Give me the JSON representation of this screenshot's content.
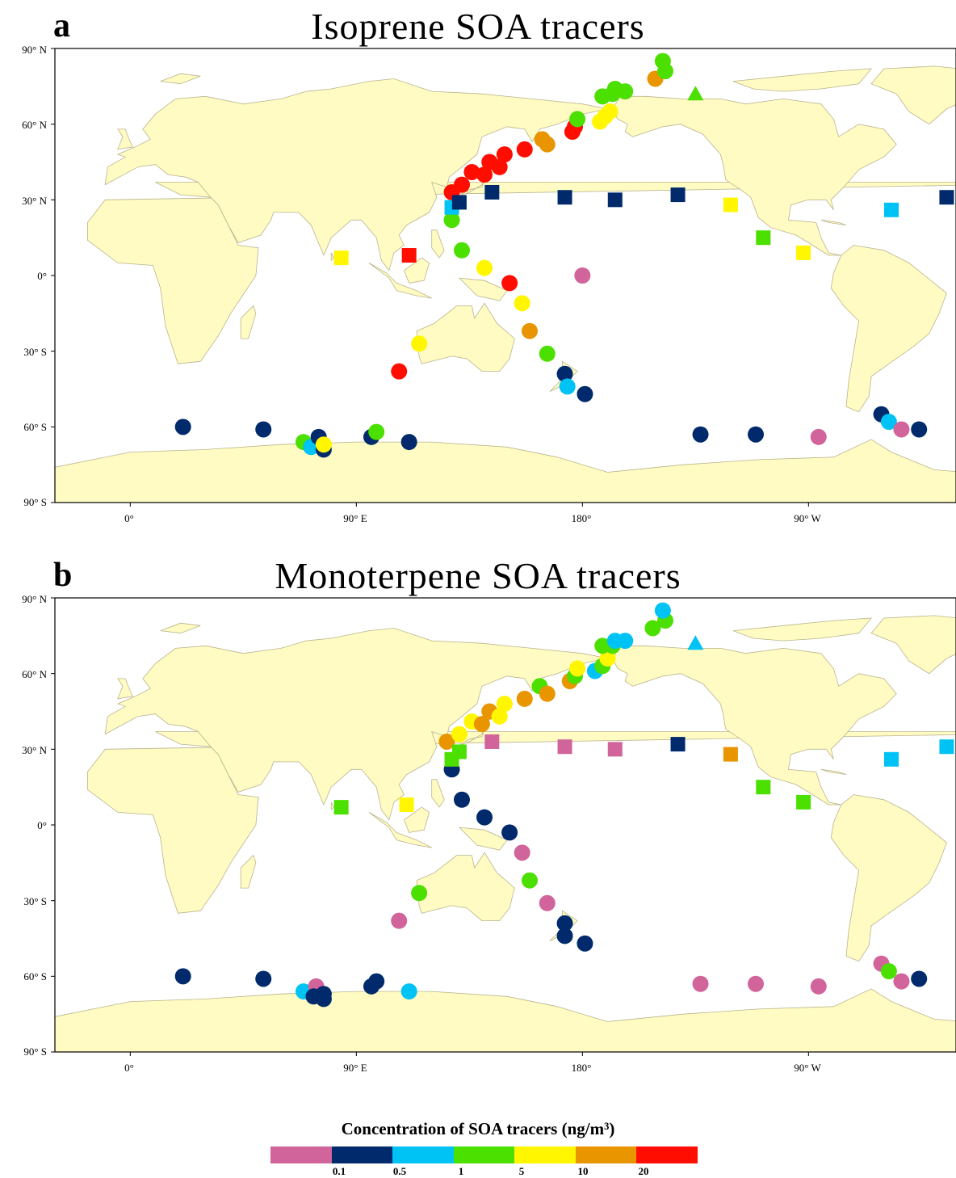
{
  "colors": {
    "land": "#fffbc2",
    "land_stroke": "#b9b48e",
    "bins": [
      "#d1649a",
      "#002a6c",
      "#00c3f5",
      "#4be000",
      "#fff600",
      "#e99500",
      "#ff0d00"
    ]
  },
  "panels": [
    {
      "id": "a",
      "letter": "a",
      "title": "Isoprene SOA tracers",
      "lat_labels": [
        "90° N",
        "60° N",
        "30° N",
        "0°",
        "30° S",
        "60° S",
        "90° S"
      ],
      "lon_labels": [
        "0°",
        "90° E",
        "180°",
        "90° W"
      ],
      "points": [
        {
          "shape": "circle",
          "lon": -180,
          "lat": 0,
          "bin": 0
        },
        {
          "shape": "circle",
          "lon": 21,
          "lat": -60,
          "bin": 1
        },
        {
          "shape": "circle",
          "lon": 53,
          "lat": -61,
          "bin": 1
        },
        {
          "shape": "circle",
          "lon": 69,
          "lat": -66,
          "bin": 3
        },
        {
          "shape": "circle",
          "lon": 72,
          "lat": -68,
          "bin": 2
        },
        {
          "shape": "circle",
          "lon": 75,
          "lat": -64,
          "bin": 1
        },
        {
          "shape": "circle",
          "lon": 77,
          "lat": -69,
          "bin": 1
        },
        {
          "shape": "circle",
          "lon": 77,
          "lat": -67,
          "bin": 4
        },
        {
          "shape": "circle",
          "lon": 96,
          "lat": -64,
          "bin": 1
        },
        {
          "shape": "circle",
          "lon": 98,
          "lat": -62,
          "bin": 3
        },
        {
          "shape": "circle",
          "lon": 111,
          "lat": -66,
          "bin": 1
        },
        {
          "shape": "circle",
          "lon": 107,
          "lat": -38,
          "bin": 6
        },
        {
          "shape": "circle",
          "lon": 115,
          "lat": -27,
          "bin": 4
        },
        {
          "shape": "circle",
          "lon": 128,
          "lat": 33,
          "bin": 6
        },
        {
          "shape": "circle",
          "lon": 132,
          "lat": 36,
          "bin": 6
        },
        {
          "shape": "circle",
          "lon": 136,
          "lat": 41,
          "bin": 6
        },
        {
          "shape": "circle",
          "lon": 141,
          "lat": 40,
          "bin": 6
        },
        {
          "shape": "circle",
          "lon": 143,
          "lat": 45,
          "bin": 6
        },
        {
          "shape": "circle",
          "lon": 147,
          "lat": 43,
          "bin": 6
        },
        {
          "shape": "circle",
          "lon": 149,
          "lat": 48,
          "bin": 6
        },
        {
          "shape": "circle",
          "lon": 157,
          "lat": 50,
          "bin": 6
        },
        {
          "shape": "circle",
          "lon": 164,
          "lat": 54,
          "bin": 5
        },
        {
          "shape": "circle",
          "lon": 166,
          "lat": 52,
          "bin": 5
        },
        {
          "shape": "circle",
          "lon": 176,
          "lat": 57,
          "bin": 6
        },
        {
          "shape": "circle",
          "lon": 177,
          "lat": 59,
          "bin": 6
        },
        {
          "shape": "circle",
          "lon": 178,
          "lat": 62,
          "bin": 3
        },
        {
          "shape": "circle",
          "lon": 187,
          "lat": 61,
          "bin": 4
        },
        {
          "shape": "circle",
          "lon": 189,
          "lat": 63,
          "bin": 4
        },
        {
          "shape": "circle",
          "lon": 191,
          "lat": 65,
          "bin": 4
        },
        {
          "shape": "circle",
          "lon": 188,
          "lat": 71,
          "bin": 3
        },
        {
          "shape": "circle",
          "lon": 192,
          "lat": 72,
          "bin": 3
        },
        {
          "shape": "circle",
          "lon": 193,
          "lat": 74,
          "bin": 3
        },
        {
          "shape": "circle",
          "lon": 197,
          "lat": 73,
          "bin": 3
        },
        {
          "shape": "circle",
          "lon": 209,
          "lat": 78,
          "bin": 5
        },
        {
          "shape": "circle",
          "lon": 213,
          "lat": 81,
          "bin": 3
        },
        {
          "shape": "circle",
          "lon": 212,
          "lat": 85,
          "bin": 3
        },
        {
          "shape": "triangle",
          "lon": 225,
          "lat": 72,
          "bin": 3
        },
        {
          "shape": "circle",
          "lon": 128,
          "lat": 22,
          "bin": 3
        },
        {
          "shape": "circle",
          "lon": 132,
          "lat": 10,
          "bin": 3
        },
        {
          "shape": "circle",
          "lon": 141,
          "lat": 3,
          "bin": 4
        },
        {
          "shape": "circle",
          "lon": 151,
          "lat": -3,
          "bin": 6
        },
        {
          "shape": "circle",
          "lon": 156,
          "lat": -11,
          "bin": 4
        },
        {
          "shape": "circle",
          "lon": 159,
          "lat": -22,
          "bin": 5
        },
        {
          "shape": "circle",
          "lon": 166,
          "lat": -31,
          "bin": 3
        },
        {
          "shape": "circle",
          "lon": 173,
          "lat": -39,
          "bin": 1
        },
        {
          "shape": "circle",
          "lon": 174,
          "lat": -44,
          "bin": 2
        },
        {
          "shape": "circle",
          "lon": 181,
          "lat": -47,
          "bin": 1
        },
        {
          "shape": "circle",
          "lon": 227,
          "lat": -63,
          "bin": 1
        },
        {
          "shape": "circle",
          "lon": 249,
          "lat": -63,
          "bin": 1
        },
        {
          "shape": "circle",
          "lon": 274,
          "lat": -64,
          "bin": 0
        },
        {
          "shape": "circle",
          "lon": 299,
          "lat": -55,
          "bin": 1
        },
        {
          "shape": "circle",
          "lon": 302,
          "lat": -58,
          "bin": 2
        },
        {
          "shape": "circle",
          "lon": 307,
          "lat": -61,
          "bin": 0
        },
        {
          "shape": "circle",
          "lon": 314,
          "lat": -61,
          "bin": 1
        },
        {
          "shape": "square",
          "lon": 128,
          "lat": 27,
          "bin": 2
        },
        {
          "shape": "square",
          "lon": 131,
          "lat": 29,
          "bin": 1
        },
        {
          "shape": "square",
          "lon": 144,
          "lat": 33,
          "bin": 1
        },
        {
          "shape": "square",
          "lon": 173,
          "lat": 31,
          "bin": 1
        },
        {
          "shape": "square",
          "lon": 193,
          "lat": 30,
          "bin": 1
        },
        {
          "shape": "square",
          "lon": 218,
          "lat": 32,
          "bin": 1
        },
        {
          "shape": "square",
          "lon": 239,
          "lat": 28,
          "bin": 4
        },
        {
          "shape": "square",
          "lon": 252,
          "lat": 15,
          "bin": 3
        },
        {
          "shape": "square",
          "lon": 268,
          "lat": 9,
          "bin": 4
        },
        {
          "shape": "square",
          "lon": 303,
          "lat": 26,
          "bin": 2
        },
        {
          "shape": "square",
          "lon": 325,
          "lat": 31,
          "bin": 1
        },
        {
          "shape": "square",
          "lon": 84,
          "lat": 7,
          "bin": 4
        },
        {
          "shape": "square",
          "lon": 111,
          "lat": 8,
          "bin": 6
        }
      ]
    },
    {
      "id": "b",
      "letter": "b",
      "title": "Monoterpene SOA tracers",
      "lat_labels": [
        "90° N",
        "60° N",
        "30° N",
        "0°",
        "30° S",
        "60° S",
        "90° S"
      ],
      "lon_labels": [
        "0°",
        "90° E",
        "180°",
        "90° W"
      ],
      "points": [
        {
          "shape": "circle",
          "lon": 21,
          "lat": -60,
          "bin": 1
        },
        {
          "shape": "circle",
          "lon": 53,
          "lat": -61,
          "bin": 1
        },
        {
          "shape": "circle",
          "lon": 69,
          "lat": -66,
          "bin": 2
        },
        {
          "shape": "circle",
          "lon": 74,
          "lat": -64,
          "bin": 0
        },
        {
          "shape": "circle",
          "lon": 73,
          "lat": -68,
          "bin": 1
        },
        {
          "shape": "circle",
          "lon": 77,
          "lat": -69,
          "bin": 1
        },
        {
          "shape": "circle",
          "lon": 77,
          "lat": -67,
          "bin": 1
        },
        {
          "shape": "circle",
          "lon": 96,
          "lat": -64,
          "bin": 1
        },
        {
          "shape": "circle",
          "lon": 98,
          "lat": -62,
          "bin": 1
        },
        {
          "shape": "circle",
          "lon": 111,
          "lat": -66,
          "bin": 2
        },
        {
          "shape": "circle",
          "lon": 107,
          "lat": -38,
          "bin": 0
        },
        {
          "shape": "circle",
          "lon": 115,
          "lat": -27,
          "bin": 3
        },
        {
          "shape": "circle",
          "lon": 126,
          "lat": 33,
          "bin": 5
        },
        {
          "shape": "circle",
          "lon": 131,
          "lat": 36,
          "bin": 4
        },
        {
          "shape": "circle",
          "lon": 136,
          "lat": 41,
          "bin": 4
        },
        {
          "shape": "circle",
          "lon": 140,
          "lat": 40,
          "bin": 5
        },
        {
          "shape": "circle",
          "lon": 143,
          "lat": 45,
          "bin": 5
        },
        {
          "shape": "circle",
          "lon": 147,
          "lat": 43,
          "bin": 4
        },
        {
          "shape": "circle",
          "lon": 149,
          "lat": 48,
          "bin": 4
        },
        {
          "shape": "circle",
          "lon": 157,
          "lat": 50,
          "bin": 5
        },
        {
          "shape": "circle",
          "lon": 163,
          "lat": 55,
          "bin": 3
        },
        {
          "shape": "circle",
          "lon": 166,
          "lat": 52,
          "bin": 5
        },
        {
          "shape": "circle",
          "lon": 175,
          "lat": 57,
          "bin": 5
        },
        {
          "shape": "circle",
          "lon": 177,
          "lat": 59,
          "bin": 3
        },
        {
          "shape": "circle",
          "lon": 178,
          "lat": 62,
          "bin": 4
        },
        {
          "shape": "circle",
          "lon": 185,
          "lat": 61,
          "bin": 2
        },
        {
          "shape": "circle",
          "lon": 188,
          "lat": 63,
          "bin": 3
        },
        {
          "shape": "circle",
          "lon": 190,
          "lat": 66,
          "bin": 4
        },
        {
          "shape": "circle",
          "lon": 188,
          "lat": 71,
          "bin": 3
        },
        {
          "shape": "circle",
          "lon": 192,
          "lat": 71,
          "bin": 3
        },
        {
          "shape": "circle",
          "lon": 193,
          "lat": 73,
          "bin": 2
        },
        {
          "shape": "circle",
          "lon": 197,
          "lat": 73,
          "bin": 2
        },
        {
          "shape": "circle",
          "lon": 208,
          "lat": 78,
          "bin": 3
        },
        {
          "shape": "circle",
          "lon": 213,
          "lat": 81,
          "bin": 3
        },
        {
          "shape": "circle",
          "lon": 212,
          "lat": 85,
          "bin": 2
        },
        {
          "shape": "triangle",
          "lon": 225,
          "lat": 72,
          "bin": 2
        },
        {
          "shape": "circle",
          "lon": 128,
          "lat": 22,
          "bin": 1
        },
        {
          "shape": "circle",
          "lon": 132,
          "lat": 10,
          "bin": 1
        },
        {
          "shape": "circle",
          "lon": 141,
          "lat": 3,
          "bin": 1
        },
        {
          "shape": "circle",
          "lon": 151,
          "lat": -3,
          "bin": 1
        },
        {
          "shape": "circle",
          "lon": 156,
          "lat": -11,
          "bin": 0
        },
        {
          "shape": "circle",
          "lon": 159,
          "lat": -22,
          "bin": 3
        },
        {
          "shape": "circle",
          "lon": 166,
          "lat": -31,
          "bin": 0
        },
        {
          "shape": "circle",
          "lon": 173,
          "lat": -39,
          "bin": 1
        },
        {
          "shape": "circle",
          "lon": 173,
          "lat": -44,
          "bin": 1
        },
        {
          "shape": "circle",
          "lon": 181,
          "lat": -47,
          "bin": 1
        },
        {
          "shape": "circle",
          "lon": 227,
          "lat": -63,
          "bin": 0
        },
        {
          "shape": "circle",
          "lon": 249,
          "lat": -63,
          "bin": 0
        },
        {
          "shape": "circle",
          "lon": 274,
          "lat": -64,
          "bin": 0
        },
        {
          "shape": "circle",
          "lon": 299,
          "lat": -55,
          "bin": 0
        },
        {
          "shape": "circle",
          "lon": 302,
          "lat": -58,
          "bin": 3
        },
        {
          "shape": "circle",
          "lon": 307,
          "lat": -62,
          "bin": 0
        },
        {
          "shape": "circle",
          "lon": 314,
          "lat": -61,
          "bin": 1
        },
        {
          "shape": "square",
          "lon": 128,
          "lat": 26,
          "bin": 3
        },
        {
          "shape": "square",
          "lon": 131,
          "lat": 29,
          "bin": 3
        },
        {
          "shape": "square",
          "lon": 144,
          "lat": 33,
          "bin": 0
        },
        {
          "shape": "square",
          "lon": 173,
          "lat": 31,
          "bin": 0
        },
        {
          "shape": "square",
          "lon": 193,
          "lat": 30,
          "bin": 0
        },
        {
          "shape": "square",
          "lon": 218,
          "lat": 32,
          "bin": 1
        },
        {
          "shape": "square",
          "lon": 239,
          "lat": 28,
          "bin": 5
        },
        {
          "shape": "square",
          "lon": 252,
          "lat": 15,
          "bin": 3
        },
        {
          "shape": "square",
          "lon": 268,
          "lat": 9,
          "bin": 3
        },
        {
          "shape": "square",
          "lon": 303,
          "lat": 26,
          "bin": 2
        },
        {
          "shape": "square",
          "lon": 325,
          "lat": 31,
          "bin": 2
        },
        {
          "shape": "square",
          "lon": 84,
          "lat": 7,
          "bin": 3
        },
        {
          "shape": "square",
          "lon": 110,
          "lat": 8,
          "bin": 4
        }
      ]
    }
  ],
  "legend": {
    "title": "Concentration of SOA tracers (ng/m³)",
    "ticks": [
      "0.1",
      "0.5",
      "1",
      "5",
      "10",
      "20"
    ]
  }
}
